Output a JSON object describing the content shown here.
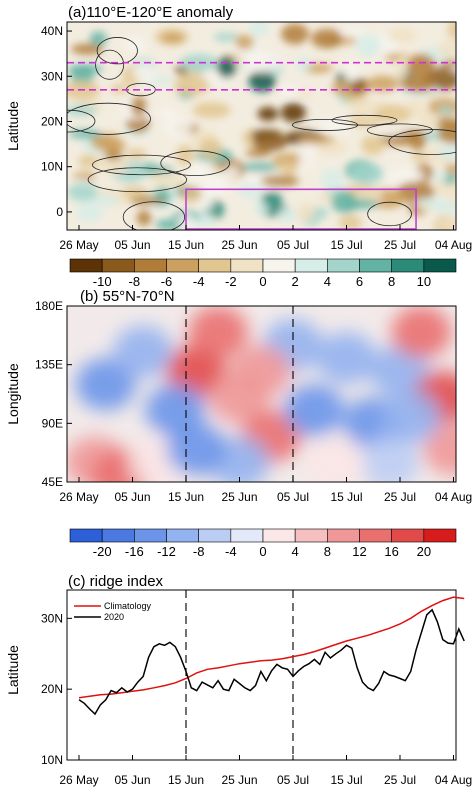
{
  "chart_data": [
    {
      "type": "heatmap",
      "title": "(a)110°E-120°E anomaly",
      "ylabel": "Latitude",
      "x_ticks": [
        "26 May",
        "05 Jun",
        "15 Jun",
        "25 Jun",
        "05 Jul",
        "15 Jul",
        "25 Jul",
        "04 Aug"
      ],
      "y_ticks": [
        "40N",
        "30N",
        "20N",
        "10N",
        "0"
      ],
      "ylim": [
        -4,
        42
      ],
      "colorbar_ticks": [
        "-10",
        "-8",
        "-6",
        "-4",
        "-2",
        "0",
        "2",
        "4",
        "6",
        "8",
        "10"
      ],
      "colorbar_range": [
        -11,
        11
      ],
      "colormap": [
        "#5c3206",
        "#8a5a1c",
        "#b07c38",
        "#cca05e",
        "#e2c68f",
        "#f0e2c4",
        "#f7f4ee",
        "#d6ede8",
        "#a3d5cb",
        "#62b3a3",
        "#2b8a78",
        "#0a5a4c"
      ],
      "annotations": [
        {
          "kind": "dashed-line",
          "color": "#d030d8",
          "lat": 33
        },
        {
          "kind": "dashed-line",
          "color": "#d030d8",
          "lat": 27
        },
        {
          "kind": "box",
          "color": "#c040d0",
          "x0": "15 Jun",
          "x1": "28 Jul",
          "lat0": -4,
          "lat1": 5
        }
      ]
    },
    {
      "type": "heatmap",
      "title": "(b) 55°N-70°N",
      "ylabel": "Longitude",
      "x_ticks": [
        "26 May",
        "05 Jun",
        "15 Jun",
        "25 Jun",
        "05 Jul",
        "15 Jul",
        "25 Jul",
        "04 Aug"
      ],
      "y_ticks": [
        "180E",
        "135E",
        "90E",
        "45E"
      ],
      "ylim": [
        45,
        180
      ],
      "colorbar_ticks": [
        "-20",
        "-16",
        "-12",
        "-8",
        "-4",
        "0",
        "4",
        "8",
        "12",
        "16",
        "20"
      ],
      "colorbar_range": [
        -22,
        22
      ],
      "colormap": [
        "#2c5fd8",
        "#4a79e2",
        "#6c95ea",
        "#93b2f0",
        "#bccdf4",
        "#e3e9f8",
        "#fbe7e7",
        "#f6c0c0",
        "#f09898",
        "#ea7070",
        "#e24a4a",
        "#d81c1c"
      ],
      "vlines": [
        "15 Jun",
        "05 Jul"
      ]
    },
    {
      "type": "line",
      "title": "(c) ridge index",
      "ylabel": "Latitude",
      "x_ticks": [
        "26 May",
        "05 Jun",
        "15 Jun",
        "25 Jun",
        "05 Jul",
        "15 Jul",
        "25 Jul",
        "04 Aug"
      ],
      "y_ticks": [
        "30N",
        "20N",
        "10N"
      ],
      "ylim": [
        10,
        34
      ],
      "x_day_range": [
        0,
        72
      ],
      "vlines": [
        "15 Jun",
        "05 Jul"
      ],
      "legend_position": "top-left",
      "series": [
        {
          "name": "Climatology",
          "color": "#e01010",
          "x": [
            0,
            2,
            4,
            6,
            8,
            10,
            12,
            14,
            16,
            18,
            20,
            22,
            24,
            26,
            28,
            30,
            32,
            34,
            36,
            38,
            40,
            42,
            44,
            46,
            48,
            50,
            52,
            54,
            56,
            58,
            60,
            62,
            64,
            66,
            68,
            70,
            72
          ],
          "values": [
            18.8,
            19.0,
            19.2,
            19.3,
            19.5,
            19.7,
            19.9,
            20.2,
            20.5,
            20.9,
            21.5,
            22.3,
            22.8,
            23.0,
            23.3,
            23.6,
            23.8,
            24.0,
            24.1,
            24.3,
            24.6,
            24.9,
            25.3,
            25.8,
            26.3,
            26.8,
            27.2,
            27.6,
            28.1,
            28.6,
            29.2,
            30.0,
            31.0,
            31.8,
            32.5,
            33.0,
            32.8
          ]
        },
        {
          "name": "2020",
          "color": "#000000",
          "x": [
            0,
            1,
            2,
            3,
            4,
            5,
            6,
            7,
            8,
            9,
            10,
            11,
            12,
            13,
            14,
            15,
            16,
            17,
            18,
            19,
            20,
            21,
            22,
            23,
            24,
            25,
            26,
            27,
            28,
            29,
            30,
            31,
            32,
            33,
            34,
            35,
            36,
            37,
            38,
            39,
            40,
            41,
            42,
            43,
            44,
            45,
            46,
            47,
            48,
            49,
            50,
            51,
            52,
            53,
            54,
            55,
            56,
            57,
            58,
            59,
            60,
            61,
            62,
            63,
            64,
            65,
            66,
            67,
            68,
            69,
            70,
            71,
            72
          ],
          "values": [
            18.5,
            18.0,
            17.2,
            16.5,
            17.8,
            18.5,
            19.8,
            19.5,
            20.2,
            19.6,
            20.0,
            21.0,
            21.8,
            24.5,
            26.0,
            26.4,
            26.2,
            26.6,
            26.0,
            24.5,
            22.5,
            20.2,
            19.8,
            21.0,
            20.6,
            20.2,
            21.2,
            20.0,
            19.8,
            21.4,
            20.8,
            20.2,
            19.8,
            20.5,
            22.5,
            21.2,
            22.6,
            23.5,
            23.0,
            22.8,
            21.8,
            22.6,
            23.2,
            23.6,
            24.2,
            23.5,
            25.2,
            24.4,
            25.0,
            25.5,
            26.2,
            25.8,
            23.0,
            21.0,
            20.2,
            19.8,
            20.8,
            22.5,
            22.0,
            21.8,
            21.5,
            21.2,
            22.5,
            25.5,
            28.0,
            30.5,
            31.2,
            29.5,
            27.0,
            26.5,
            26.4,
            28.5,
            26.8
          ]
        }
      ]
    }
  ]
}
